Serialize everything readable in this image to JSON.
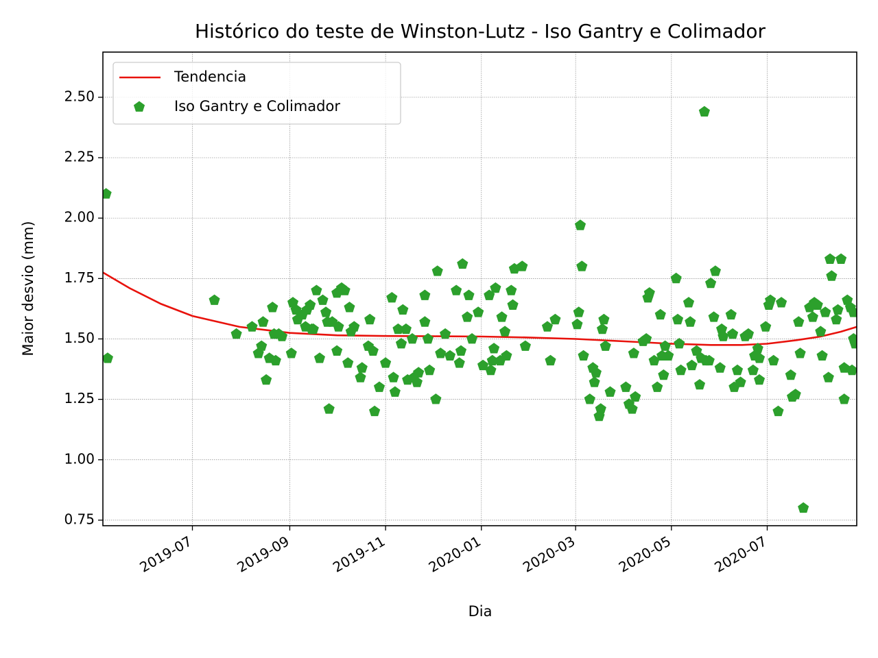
{
  "chart_data": {
    "type": "scatter",
    "title": "Histórico do teste de Winston-Lutz - Iso Gantry e Colimador",
    "x_label": "Dia",
    "y_label": "Maior desvio (mm)",
    "xlim": [
      -57,
      423
    ],
    "xticks": [
      {
        "value": 0,
        "label": "2019-07"
      },
      {
        "value": 62,
        "label": "2019-09"
      },
      {
        "value": 123,
        "label": "2019-11"
      },
      {
        "value": 184,
        "label": "2020-01"
      },
      {
        "value": 244,
        "label": "2020-03"
      },
      {
        "value": 305,
        "label": "2020-05"
      },
      {
        "value": 366,
        "label": "2020-07"
      }
    ],
    "ylim": [
      0.727,
      2.687
    ],
    "yticks": [
      {
        "value": 0.75,
        "label": "0.75"
      },
      {
        "value": 1.0,
        "label": "1.00"
      },
      {
        "value": 1.25,
        "label": "1.25"
      },
      {
        "value": 1.5,
        "label": "1.50"
      },
      {
        "value": 1.75,
        "label": "1.75"
      },
      {
        "value": 2.0,
        "label": "2.00"
      },
      {
        "value": 2.25,
        "label": "2.25"
      },
      {
        "value": 2.5,
        "label": "2.50"
      }
    ],
    "grid": true,
    "legend": "upper left",
    "series": [
      {
        "name": "Tendencia",
        "type": "line",
        "color": "#e8120c",
        "x": [
          -57,
          -40,
          -20,
          0,
          30,
          62,
          92,
          123,
          154,
          184,
          214,
          244,
          275,
          305,
          330,
          350,
          366,
          385,
          400,
          413,
          423
        ],
        "values": [
          1.775,
          1.71,
          1.645,
          1.595,
          1.55,
          1.525,
          1.515,
          1.512,
          1.511,
          1.51,
          1.506,
          1.5,
          1.49,
          1.48,
          1.475,
          1.475,
          1.48,
          1.495,
          1.51,
          1.53,
          1.55
        ]
      },
      {
        "name": "Iso Gantry e Colimador",
        "type": "scatter",
        "color": "#2ca02c",
        "x": [
          -55,
          -54,
          14,
          28,
          38,
          42,
          44,
          45,
          47,
          49,
          51,
          52,
          53,
          55,
          57,
          63,
          64,
          66,
          67,
          70,
          72,
          73,
          75,
          76,
          77,
          79,
          81,
          83,
          85,
          86,
          87,
          89,
          92,
          92,
          93,
          95,
          97,
          99,
          100,
          101,
          103,
          107,
          108,
          112,
          113,
          115,
          116,
          119,
          123,
          127,
          128,
          129,
          131,
          133,
          134,
          136,
          137,
          140,
          141,
          143,
          144,
          148,
          148,
          150,
          151,
          155,
          156,
          158,
          161,
          164,
          168,
          170,
          171,
          172,
          175,
          176,
          178,
          182,
          185,
          189,
          190,
          191,
          192,
          193,
          196,
          197,
          199,
          200,
          203,
          204,
          205,
          210,
          212,
          226,
          228,
          231,
          245,
          246,
          247,
          248,
          249,
          253,
          255,
          256,
          257,
          259,
          260,
          261,
          262,
          263,
          266,
          276,
          278,
          280,
          281,
          282,
          287,
          289,
          290,
          291,
          294,
          296,
          298,
          299,
          300,
          301,
          303,
          308,
          309,
          310,
          311,
          316,
          317,
          318,
          321,
          323,
          324,
          326,
          327,
          329,
          330,
          333,
          332,
          336,
          337,
          338,
          343,
          344,
          345,
          347,
          349,
          352,
          354,
          357,
          358,
          360,
          361,
          361,
          365,
          367,
          368,
          370,
          373,
          375,
          381,
          382,
          384,
          386,
          387,
          389,
          393,
          395,
          396,
          398,
          400,
          401,
          403,
          405,
          406,
          407,
          410,
          411,
          413,
          415,
          415,
          417,
          419,
          420,
          421,
          421,
          422
        ],
        "values": [
          2.1,
          1.42,
          1.66,
          1.52,
          1.55,
          1.44,
          1.47,
          1.57,
          1.33,
          1.42,
          1.63,
          1.52,
          1.41,
          1.52,
          1.51,
          1.44,
          1.65,
          1.62,
          1.58,
          1.6,
          1.55,
          1.62,
          1.64,
          1.54,
          1.54,
          1.7,
          1.42,
          1.66,
          1.61,
          1.57,
          1.21,
          1.57,
          1.45,
          1.69,
          1.55,
          1.71,
          1.7,
          1.4,
          1.63,
          1.53,
          1.55,
          1.34,
          1.38,
          1.47,
          1.58,
          1.45,
          1.2,
          1.3,
          1.4,
          1.67,
          1.34,
          1.28,
          1.54,
          1.48,
          1.62,
          1.54,
          1.33,
          1.5,
          1.34,
          1.32,
          1.36,
          1.57,
          1.68,
          1.5,
          1.37,
          1.25,
          1.78,
          1.44,
          1.52,
          1.43,
          1.7,
          1.4,
          1.45,
          1.81,
          1.59,
          1.68,
          1.5,
          1.61,
          1.39,
          1.68,
          1.37,
          1.41,
          1.46,
          1.71,
          1.41,
          1.59,
          1.53,
          1.43,
          1.7,
          1.64,
          1.79,
          1.8,
          1.47,
          1.55,
          1.41,
          1.58,
          1.56,
          1.61,
          1.97,
          1.8,
          1.43,
          1.25,
          1.38,
          1.32,
          1.36,
          1.18,
          1.21,
          1.54,
          1.58,
          1.47,
          1.28,
          1.3,
          1.23,
          1.21,
          1.44,
          1.26,
          1.49,
          1.5,
          1.67,
          1.69,
          1.41,
          1.3,
          1.6,
          1.43,
          1.35,
          1.47,
          1.43,
          1.75,
          1.58,
          1.48,
          1.37,
          1.65,
          1.57,
          1.39,
          1.45,
          1.31,
          1.42,
          2.44,
          1.41,
          1.41,
          1.73,
          1.78,
          1.59,
          1.38,
          1.54,
          1.51,
          1.6,
          1.52,
          1.3,
          1.37,
          1.32,
          1.51,
          1.52,
          1.37,
          1.43,
          1.46,
          1.42,
          1.33,
          1.55,
          1.64,
          1.66,
          1.41,
          1.2,
          1.65,
          1.35,
          1.26,
          1.27,
          1.57,
          1.44,
          0.8,
          1.63,
          1.59,
          1.65,
          1.64,
          1.53,
          1.43,
          1.61,
          1.34,
          1.83,
          1.76,
          1.58,
          1.62,
          1.83,
          1.25,
          1.38,
          1.66,
          1.63,
          1.37,
          1.5,
          1.61,
          1.48
        ]
      }
    ]
  }
}
